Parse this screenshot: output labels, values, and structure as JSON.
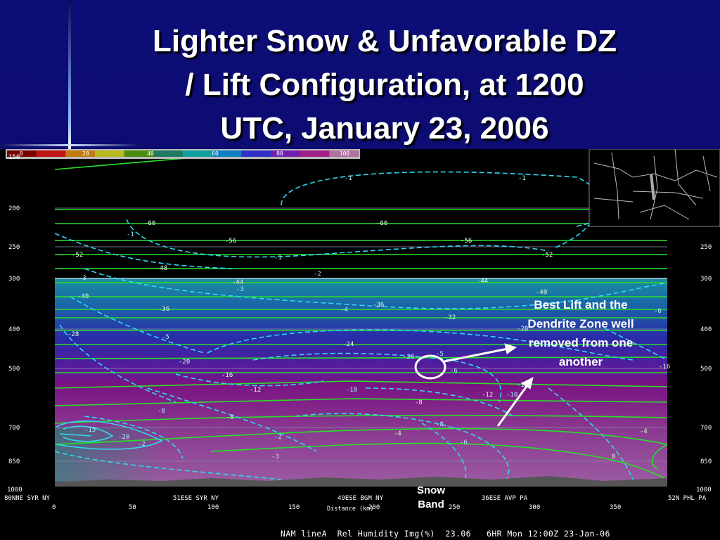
{
  "slide": {
    "title_lines": [
      "Lighter Snow & Unfavorable DZ",
      "/ Lift Configuration, at 1200",
      "UTC, January 23, 2006"
    ]
  },
  "colorbar": {
    "ticks": [
      "0",
      "20",
      "40",
      "60",
      "80",
      "100"
    ],
    "colors": [
      "#7a0000",
      "#c01414",
      "#c07a10",
      "#b8b820",
      "#4a8a10",
      "#207a60",
      "#10a0a0",
      "#1080c0",
      "#3030c8",
      "#7020b0",
      "#a0208a",
      "#b070a0"
    ]
  },
  "axes": {
    "y_ticks": [
      "150",
      "200",
      "250",
      "300",
      "400",
      "500",
      "700",
      "850",
      "1000"
    ],
    "x_ticks": [
      "0",
      "50",
      "100",
      "150",
      "200",
      "250",
      "300",
      "350"
    ],
    "x_label": "Distance (km)",
    "x_locations": [
      "80NNE SYR NY",
      "51ESE SYR NY",
      "49ESE BGM NY",
      "36ESE AVP PA",
      "52N PHL PA"
    ]
  },
  "contour_labels": {
    "temperature": [
      "-60",
      "-60",
      "-56",
      "-56",
      "-52",
      "-52",
      "-48",
      "-44",
      "-44",
      "-40",
      "-40",
      "-36",
      "-36",
      "-32",
      "-28",
      "-28",
      "-24",
      "-20",
      "-20",
      "-16",
      "-16",
      "-12",
      "-12",
      "-8",
      "-8",
      "-4",
      "-4",
      "0"
    ],
    "vertical_motion": [
      "-1",
      "-1",
      "-1",
      "-1",
      "-2",
      "-3",
      "-3",
      "-4",
      "-5",
      "-5",
      "-6",
      "-6",
      "-8",
      "-10",
      "-10",
      "-12",
      "-15",
      "-20",
      "-2",
      "-2",
      "-3",
      "-8",
      "-6",
      "-1",
      "-1"
    ]
  },
  "annotations": {
    "callout_text": "Best Lift and the Dendrite Zone well removed from one another",
    "snow_band": "Snow Band"
  },
  "footer": {
    "model": "NAM lineA",
    "field": "Rel Humidity Img(%)",
    "value": "23.06",
    "forecast": "6HR",
    "valid": "Mon 12:00Z 23-Jan-06"
  }
}
